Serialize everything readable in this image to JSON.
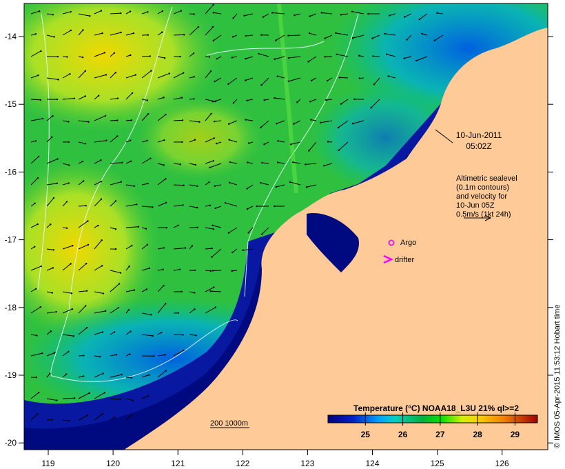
{
  "map": {
    "x_ticks": [
      "119",
      "120",
      "121",
      "122",
      "123",
      "124",
      "125",
      "126"
    ],
    "y_ticks": [
      "-14",
      "-15",
      "-16",
      "-17",
      "-18",
      "-19",
      "-20"
    ],
    "date_label": "10-Jun-2011",
    "time_label": "05:02Z",
    "altimetry_note": [
      "Altimetric sealevel",
      "(0.1m contours)",
      "and velocity for",
      "10-Jun 05Z",
      "0.5m/s (1kt 24h)"
    ],
    "argo_label": "Argo",
    "drifter_label": "drifter",
    "depth_label": "200  1000m",
    "credit": "© IMOS 05-Apr-2015 11:53:12 Hobart time",
    "colors": {
      "land": "#fdca98",
      "argo": "#e020e0",
      "drifter": "#ff00ff"
    }
  },
  "colorbar": {
    "title": "Temperature (°C) NOAA18_L3U 21% ql>=2",
    "ticks": [
      "25",
      "26",
      "27",
      "28",
      "29"
    ],
    "range": [
      24,
      29.6
    ]
  }
}
